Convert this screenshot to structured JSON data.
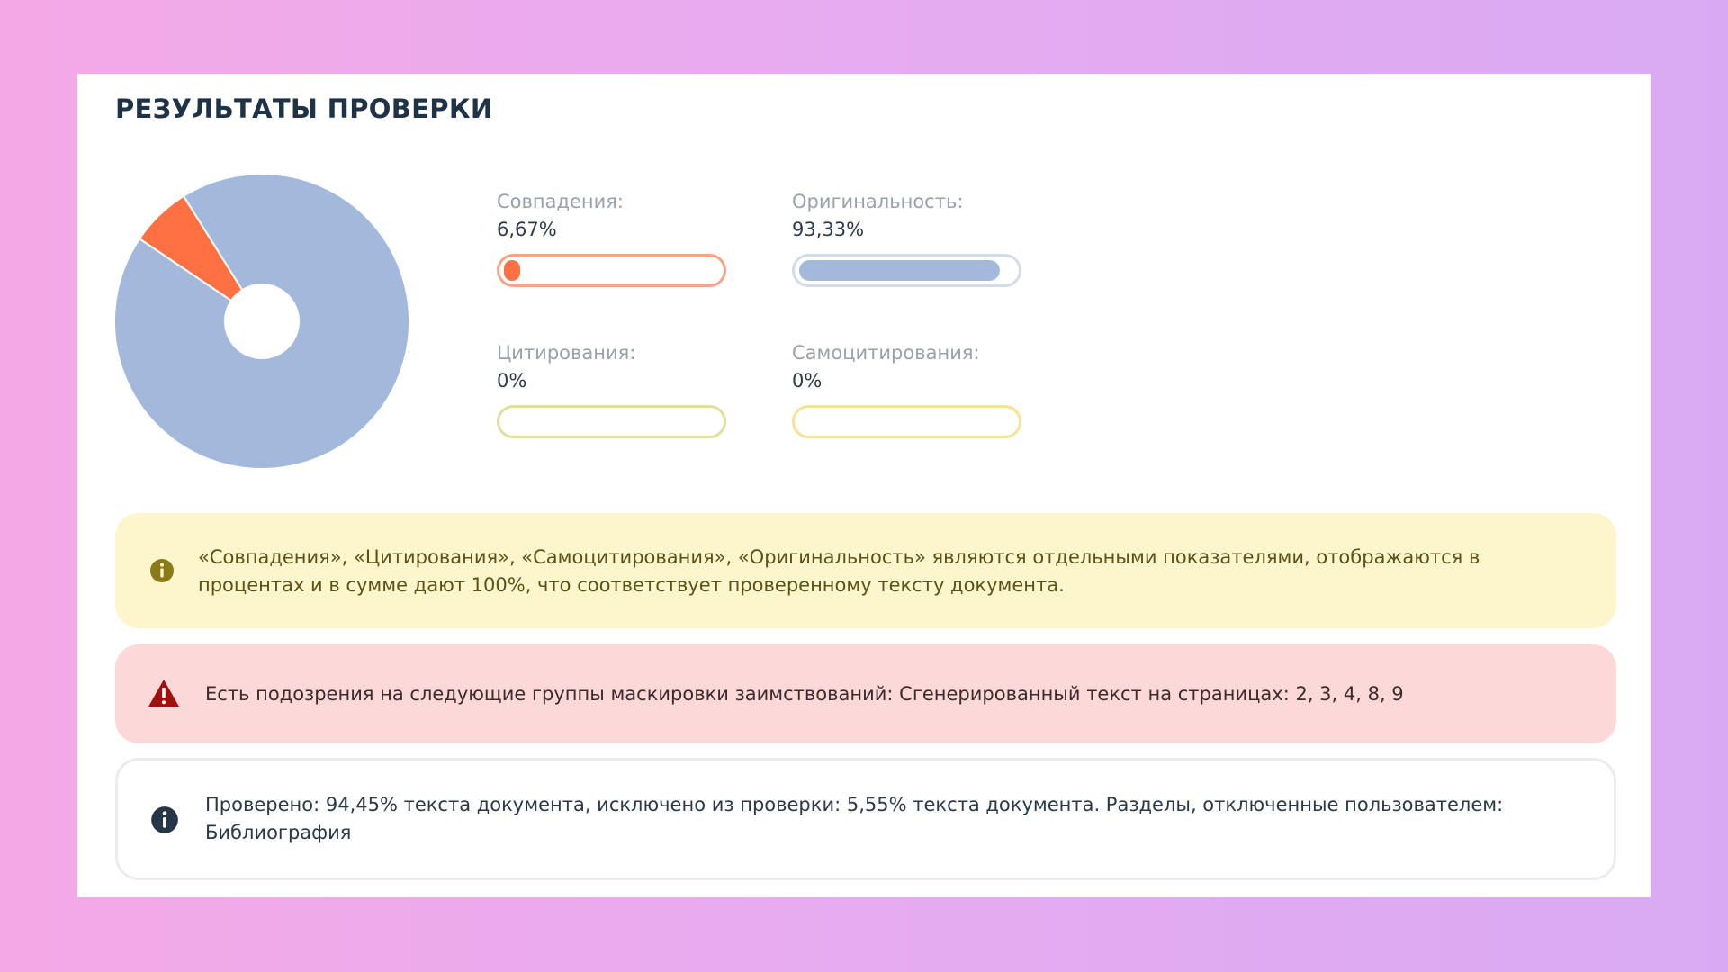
{
  "header": {
    "title": "РЕЗУЛЬТАТЫ ПРОВЕРКИ"
  },
  "colors": {
    "matches": "#ff7043",
    "originality": "#a2b9dc",
    "citations": "#dce1a3",
    "self_citations": "#f6e296",
    "info_bg": "#fdf5cc",
    "warning_bg": "#fdd8d8"
  },
  "chart_data": {
    "type": "pie",
    "slices": [
      {
        "name": "Совпадения",
        "value": 6.67,
        "color": "#ff7043"
      },
      {
        "name": "Оригинальность",
        "value": 93.33,
        "color": "#a2b9dc"
      },
      {
        "name": "Цитирования",
        "value": 0,
        "color": "#dce1a3"
      },
      {
        "name": "Самоцитирования",
        "value": 0,
        "color": "#f6e296"
      }
    ]
  },
  "metrics": {
    "matches": {
      "label": "Совпадения:",
      "value": "6,67%",
      "fraction": 0.0667
    },
    "originality": {
      "label": "Оригинальность:",
      "value": "93,33%",
      "fraction": 0.9333
    },
    "citations": {
      "label": "Цитирования:",
      "value": "0%",
      "fraction": 0
    },
    "self_citations": {
      "label": "Самоцитирования:",
      "value": "0%",
      "fraction": 0
    }
  },
  "alerts": {
    "info": {
      "icon": "info-icon",
      "text": "«Совпадения», «Цитирования», «Самоцитирования», «Оригинальность» являются отдельными показателями, отображаются в процентах и в сумме дают 100%, что соответствует проверенному тексту документа."
    },
    "warning": {
      "icon": "warning-icon",
      "text": "Есть подозрения на следующие группы маскировки заимствований:  Сгенерированный текст на страницах: 2, 3, 4, 8, 9"
    },
    "checked": {
      "icon": "info-icon",
      "text": "Проверено: 94,45% текста документа, исключено из проверки: 5,55% текста документа. Разделы, отключенные пользователем: Библиография"
    }
  }
}
